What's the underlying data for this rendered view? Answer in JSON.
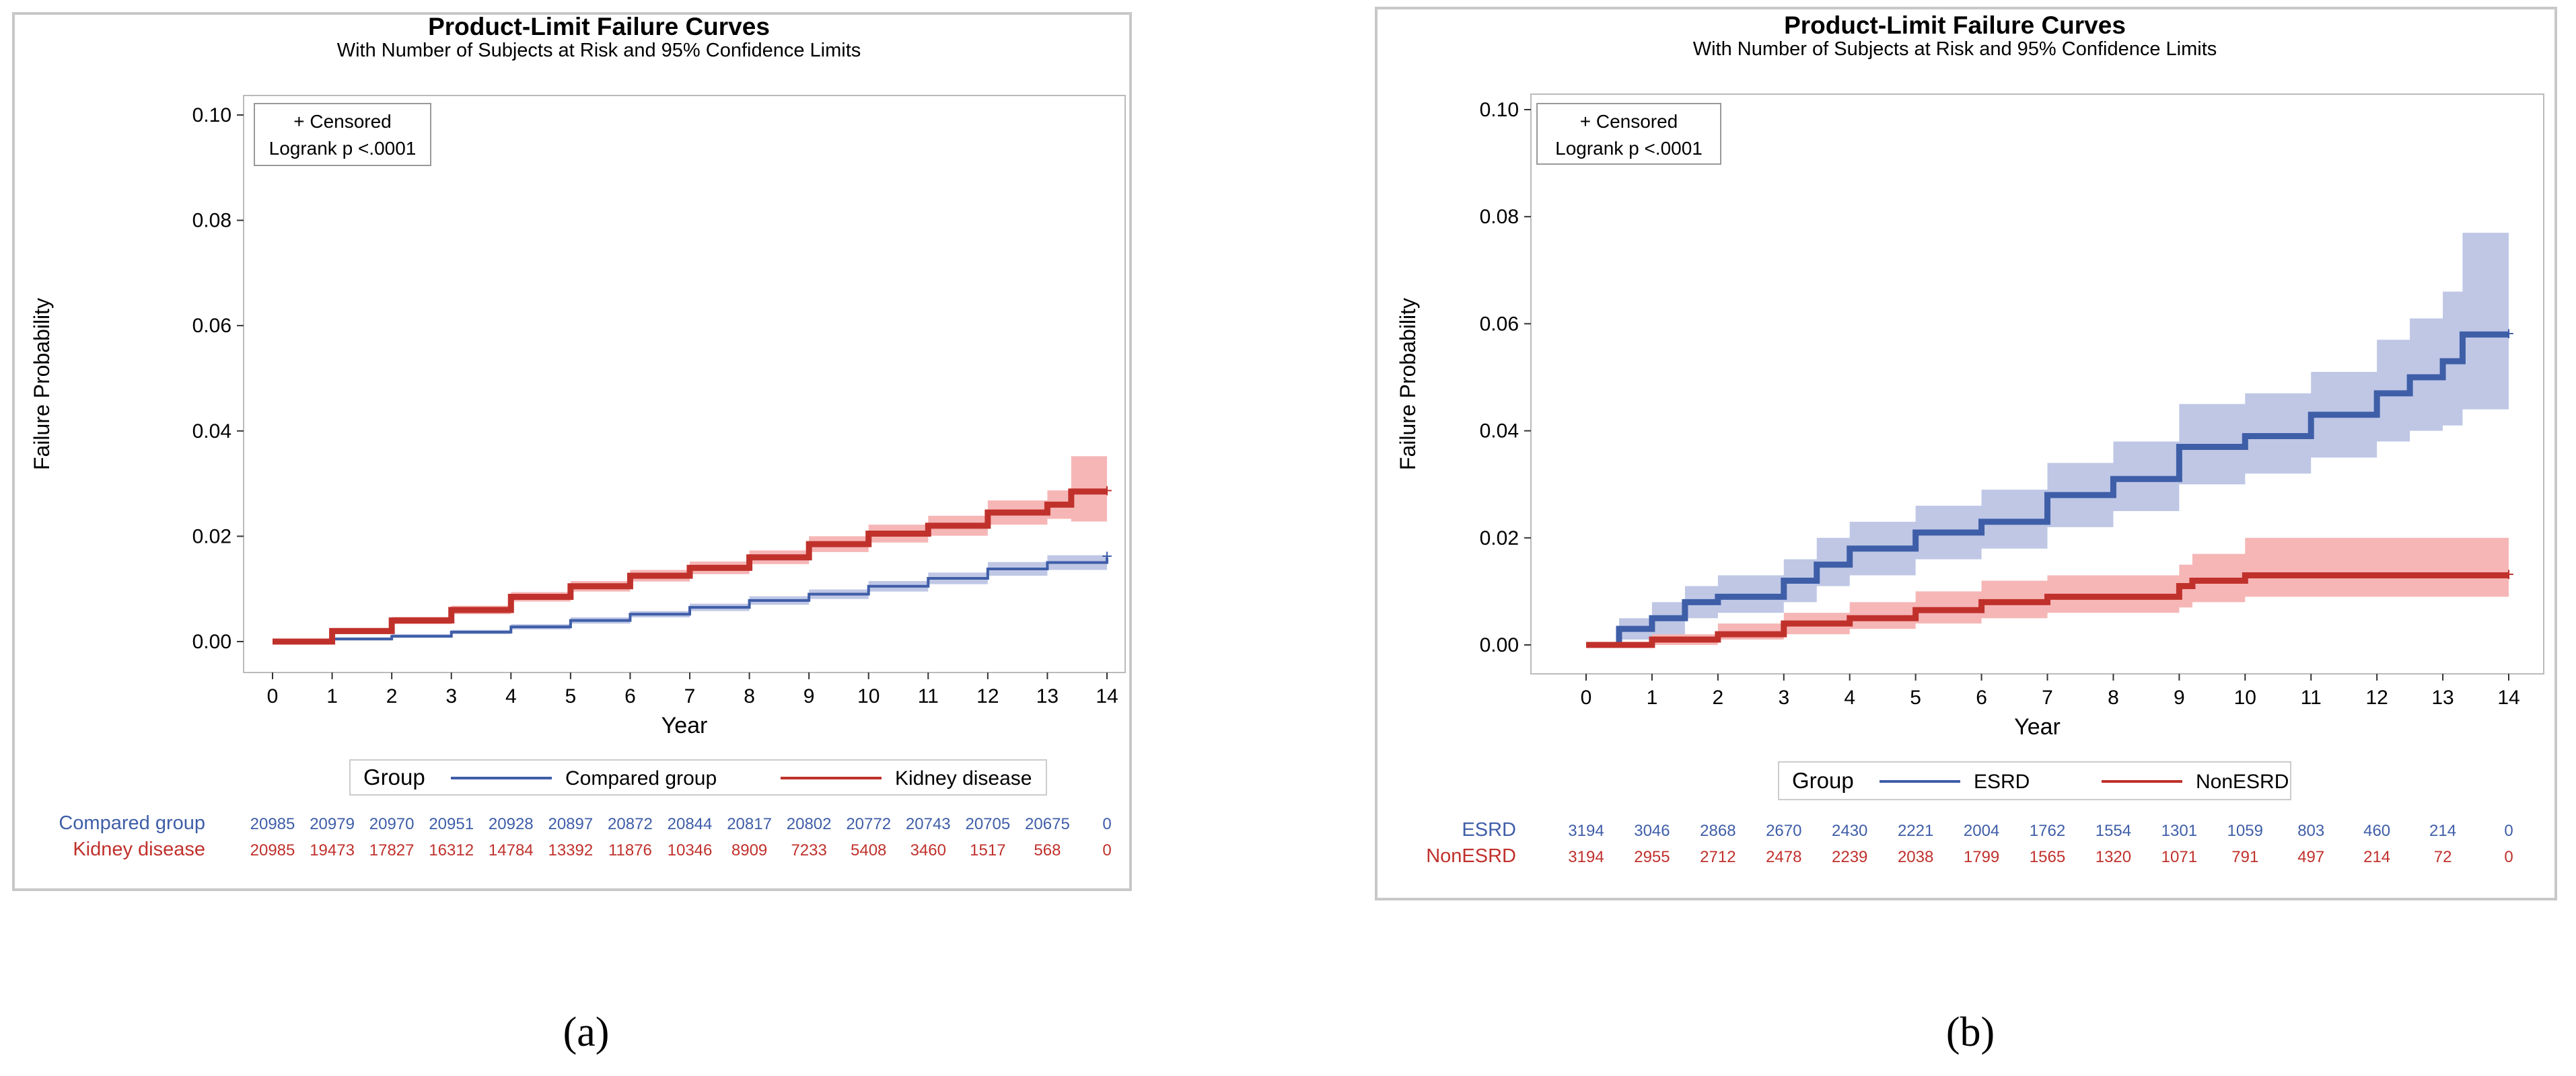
{
  "chart_data": [
    {
      "type": "line",
      "panel_label": "(a)",
      "title": "Product-Limit Failure Curves",
      "subtitle": "With Number of Subjects at Risk and 95% Confidence Limits",
      "xlabel": "Year",
      "ylabel": "Failure Probability",
      "xlim": [
        0,
        14
      ],
      "ylim": [
        0,
        0.1
      ],
      "xticks": [
        "0",
        "1",
        "2",
        "3",
        "4",
        "5",
        "6",
        "7",
        "8",
        "9",
        "10",
        "11",
        "12",
        "13",
        "14"
      ],
      "yticks": [
        "0.00",
        "0.02",
        "0.04",
        "0.06",
        "0.08",
        "0.10"
      ],
      "inset": [
        "+ Censored",
        "Logrank p <.0001"
      ],
      "legend": {
        "title": "Group",
        "placement": "bottom"
      },
      "series": [
        {
          "name": "Compared group",
          "color": "#3f5ea8",
          "band": "#b4bde0",
          "x": [
            0,
            1,
            2,
            3,
            4,
            5,
            6,
            7,
            8,
            9,
            10,
            11,
            12,
            13,
            14
          ],
          "y": [
            0,
            0.0005,
            0.001,
            0.0018,
            0.0028,
            0.004,
            0.0052,
            0.0065,
            0.0078,
            0.009,
            0.0105,
            0.012,
            0.0138,
            0.015,
            0.016
          ],
          "lower": [
            0,
            0.0002,
            0.0007,
            0.0014,
            0.0023,
            0.0034,
            0.0046,
            0.0058,
            0.007,
            0.0081,
            0.0095,
            0.0109,
            0.0125,
            0.0136,
            0.0145
          ],
          "upper": [
            0,
            0.0008,
            0.0014,
            0.0022,
            0.0033,
            0.0046,
            0.0058,
            0.0072,
            0.0086,
            0.0099,
            0.0115,
            0.0131,
            0.0151,
            0.0164,
            0.0175
          ],
          "at_risk": [
            "20985",
            "20979",
            "20970",
            "20951",
            "20928",
            "20897",
            "20872",
            "20844",
            "20817",
            "20802",
            "20772",
            "20743",
            "20705",
            "20675",
            "0"
          ]
        },
        {
          "name": "Kidney disease",
          "color": "#c0312c",
          "band": "#f5a9a9",
          "x": [
            0,
            1,
            2,
            3,
            4,
            5,
            6,
            7,
            8,
            9,
            10,
            11,
            12,
            13,
            13.4,
            14
          ],
          "y": [
            0,
            0.002,
            0.004,
            0.006,
            0.0085,
            0.0105,
            0.0125,
            0.014,
            0.016,
            0.0185,
            0.0205,
            0.022,
            0.0245,
            0.026,
            0.0285,
            0.0285
          ],
          "lower": [
            0,
            0.0014,
            0.0033,
            0.0052,
            0.0076,
            0.0095,
            0.0114,
            0.0128,
            0.0147,
            0.017,
            0.0188,
            0.0201,
            0.0222,
            0.0233,
            0.0228,
            0.0228
          ],
          "upper": [
            0,
            0.0026,
            0.0047,
            0.0068,
            0.0094,
            0.0115,
            0.0136,
            0.0152,
            0.0173,
            0.02,
            0.0222,
            0.0239,
            0.0268,
            0.0287,
            0.0352,
            0.0352
          ],
          "at_risk": [
            "20985",
            "19473",
            "17827",
            "16312",
            "14784",
            "13392",
            "11876",
            "10346",
            "8909",
            "7233",
            "5408",
            "3460",
            "1517",
            "568",
            "0"
          ]
        }
      ]
    },
    {
      "type": "line",
      "panel_label": "(b)",
      "title": "Product-Limit Failure Curves",
      "subtitle": "With Number of Subjects at Risk and 95% Confidence Limits",
      "xlabel": "Year",
      "ylabel": "Failure Probability",
      "xlim": [
        0,
        14
      ],
      "ylim": [
        0,
        0.1
      ],
      "xticks": [
        "0",
        "1",
        "2",
        "3",
        "4",
        "5",
        "6",
        "7",
        "8",
        "9",
        "10",
        "11",
        "12",
        "13",
        "14"
      ],
      "yticks": [
        "0.00",
        "0.02",
        "0.04",
        "0.06",
        "0.08",
        "0.10"
      ],
      "inset": [
        "+ Censored",
        "Logrank p <.0001"
      ],
      "legend": {
        "title": "Group",
        "placement": "bottom"
      },
      "series": [
        {
          "name": "ESRD",
          "color": "#3f5ea8",
          "band": "#b4bde0",
          "x": [
            0,
            0.5,
            1,
            1.5,
            2,
            3,
            3.5,
            4,
            5,
            6,
            7,
            8,
            9,
            10,
            11,
            12,
            12.5,
            13,
            13.3,
            14
          ],
          "y": [
            0,
            0.003,
            0.005,
            0.008,
            0.009,
            0.012,
            0.015,
            0.018,
            0.021,
            0.023,
            0.028,
            0.031,
            0.037,
            0.039,
            0.043,
            0.047,
            0.05,
            0.053,
            0.058,
            0.058
          ],
          "lower": [
            0,
            0.001,
            0.002,
            0.005,
            0.006,
            0.008,
            0.011,
            0.013,
            0.016,
            0.018,
            0.022,
            0.025,
            0.03,
            0.032,
            0.035,
            0.038,
            0.04,
            0.041,
            0.044,
            0.044
          ],
          "upper": [
            0,
            0.005,
            0.008,
            0.011,
            0.013,
            0.016,
            0.02,
            0.023,
            0.026,
            0.029,
            0.034,
            0.038,
            0.045,
            0.047,
            0.051,
            0.057,
            0.061,
            0.066,
            0.077,
            0.077
          ],
          "at_risk": [
            "3194",
            "3046",
            "2868",
            "2670",
            "2430",
            "2221",
            "2004",
            "1762",
            "1554",
            "1301",
            "1059",
            "803",
            "460",
            "214",
            "0"
          ]
        },
        {
          "name": "NonESRD",
          "color": "#c0312c",
          "band": "#f5a9a9",
          "x": [
            0,
            1,
            2,
            3,
            4,
            5,
            6,
            7,
            8,
            9,
            9.2,
            10,
            14
          ],
          "y": [
            0,
            0.001,
            0.002,
            0.004,
            0.005,
            0.0065,
            0.008,
            0.009,
            0.009,
            0.011,
            0.012,
            0.013,
            0.013
          ],
          "lower": [
            0,
            0,
            0.001,
            0.002,
            0.003,
            0.004,
            0.005,
            0.006,
            0.006,
            0.007,
            0.008,
            0.009,
            0.009
          ],
          "upper": [
            0,
            0.002,
            0.004,
            0.006,
            0.008,
            0.01,
            0.012,
            0.013,
            0.013,
            0.015,
            0.017,
            0.02,
            0.02
          ],
          "at_risk": [
            "3194",
            "2955",
            "2712",
            "2478",
            "2239",
            "2038",
            "1799",
            "1565",
            "1320",
            "1071",
            "791",
            "497",
            "214",
            "72",
            "0"
          ]
        }
      ]
    }
  ]
}
